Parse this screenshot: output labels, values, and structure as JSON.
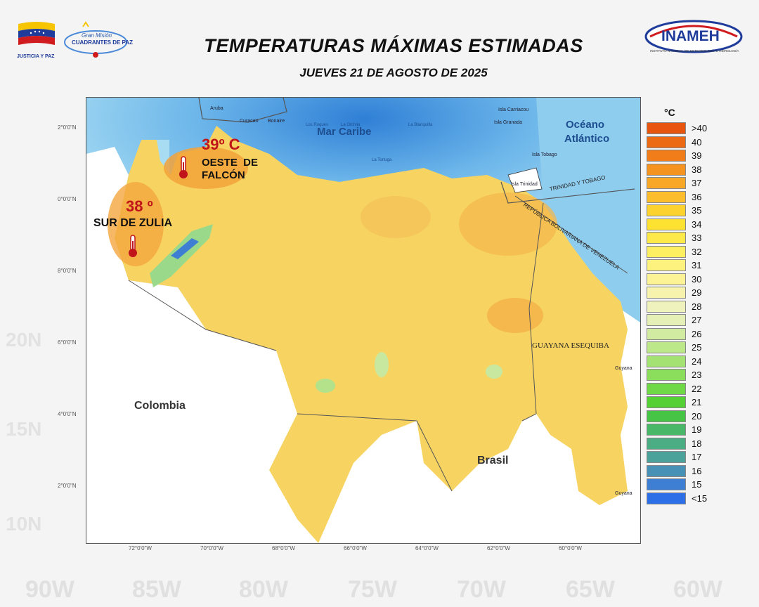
{
  "header": {
    "title": "TEMPERATURAS MÁXIMAS ESTIMADAS",
    "subtitle": "JUEVES 21 DE AGOSTO DE 2025",
    "logo_left_caption": "JUSTICIA Y PAZ",
    "logo_mid_line1": "Gran Misión",
    "logo_mid_line2": "CUADRANTES DE PAZ",
    "logo_right_text": "INAMEH",
    "logo_right_caption": "INSTITUTO NACIONAL DE METEOROLOGÍA E HIDROLOGÍA"
  },
  "map": {
    "labels": {
      "sea": "Mar Caribe",
      "ocean_line1": "Océano",
      "ocean_line2": "Atlántico",
      "colombia": "Colombia",
      "brasil": "Brasil",
      "guayana": "GUAYANA ESEQUIBA",
      "tt_border": "TRINIDAD Y TOBAGO",
      "ven_border": "REPÚBLICA BOLIVARIANA DE VENEZUELA",
      "aruba": "Aruba",
      "curacao": "Curacao",
      "bonaire": "Bonaire",
      "los_roques": "Los Roques",
      "la_orchila": "La Orchila",
      "la_blanquilla": "La Blanquilla",
      "la_tortuga": "La Tortuga",
      "carriacou": "Isla Carriacou",
      "granada": "Isla Granada",
      "tobago": "Isla Tobago",
      "trinidad": "Isla Trinidad",
      "guyana1": "Guyana",
      "guyana2": "Guyana"
    },
    "callouts": [
      {
        "value": "39º C",
        "line1": "OESTE  DE",
        "line2": "FALCÓN"
      },
      {
        "value": "38 º",
        "line1": "SUR DE ZULIA"
      }
    ],
    "lat_labels": [
      "2°0'0\"N",
      "0°0'0\"N",
      "8°0'0\"N",
      "6°0'0\"N",
      "4°0'0\"N",
      "2°0'0\"N"
    ],
    "lon_labels": [
      "72°0'0\"W",
      "70°0'0\"W",
      "68°0'0\"W",
      "66°0'0\"W",
      "64°0'0\"W",
      "62°0'0\"W",
      "60°0'0\"W"
    ]
  },
  "legend": {
    "unit": "°C",
    "items": [
      {
        "label": ">40",
        "color": "#e8550f"
      },
      {
        "label": "40",
        "color": "#ec6a14"
      },
      {
        "label": "39",
        "color": "#f07d19"
      },
      {
        "label": "38",
        "color": "#f59320"
      },
      {
        "label": "37",
        "color": "#f8a826"
      },
      {
        "label": "36",
        "color": "#fbbd2c"
      },
      {
        "label": "35",
        "color": "#fcd22f"
      },
      {
        "label": "34",
        "color": "#fde232"
      },
      {
        "label": "33",
        "color": "#fde94a"
      },
      {
        "label": "32",
        "color": "#fdee62"
      },
      {
        "label": "31",
        "color": "#fdf27d"
      },
      {
        "label": "30",
        "color": "#fbf396"
      },
      {
        "label": "29",
        "color": "#f7f3ac"
      },
      {
        "label": "28",
        "color": "#f0f2bd"
      },
      {
        "label": "27",
        "color": "#e4f0b5"
      },
      {
        "label": "26",
        "color": "#d1eca0"
      },
      {
        "label": "25",
        "color": "#bce88a"
      },
      {
        "label": "24",
        "color": "#a4e373"
      },
      {
        "label": "23",
        "color": "#8ade5c"
      },
      {
        "label": "22",
        "color": "#6fd847"
      },
      {
        "label": "21",
        "color": "#55d034"
      },
      {
        "label": "20",
        "color": "#45c445"
      },
      {
        "label": "19",
        "color": "#48b868"
      },
      {
        "label": "18",
        "color": "#4aad84"
      },
      {
        "label": "17",
        "color": "#4aa29a"
      },
      {
        "label": "16",
        "color": "#4791b6"
      },
      {
        "label": "15",
        "color": "#3f7fd3"
      },
      {
        "label": "<15",
        "color": "#2c6fe6"
      }
    ]
  },
  "background": {
    "marks": [
      "20N",
      "15N",
      "10N"
    ],
    "bottom": [
      "90W",
      "85W",
      "80W",
      "75W",
      "70W",
      "65W",
      "60W"
    ]
  }
}
